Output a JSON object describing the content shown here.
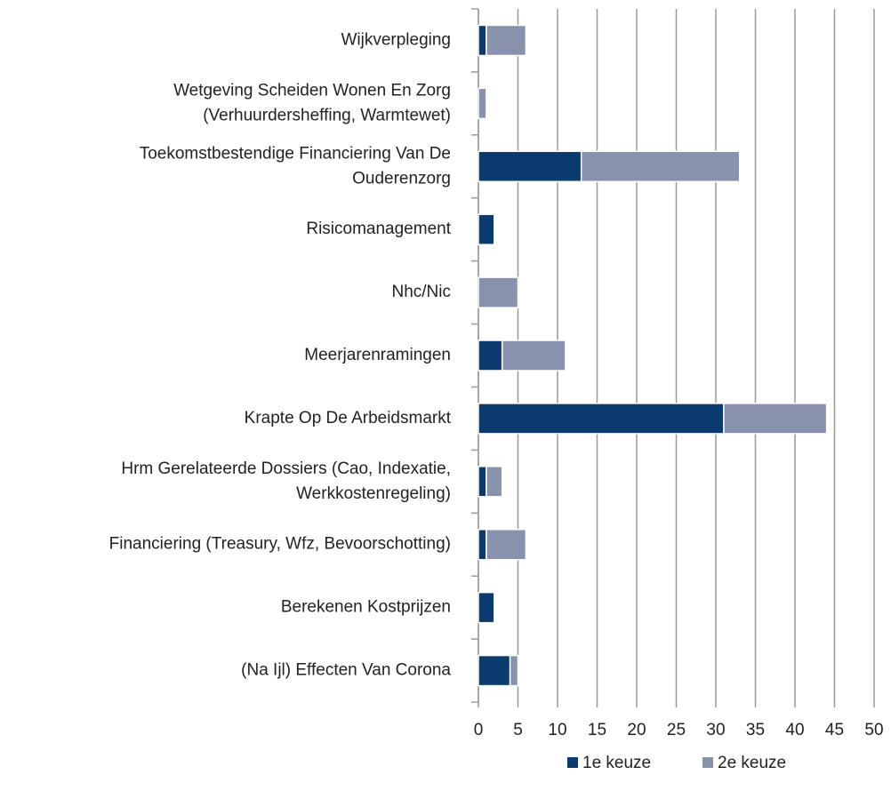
{
  "chart_data": {
    "type": "stacked-barh",
    "categories": [
      "Wijkverpleging",
      "Wetgeving Scheiden Wonen En Zorg\n(Verhuurdersheffing, Warmtewet)",
      "Toekomstbestendige Financiering Van De\nOuderenzorg",
      "Risicomanagement",
      "Nhc/Nic",
      "Meerjarenramingen",
      "Krapte Op De Arbeidsmarkt",
      "Hrm Gerelateerde Dossiers (Cao, Indexatie,\nWerkkostenregeling)",
      "Financiering (Treasury, Wfz, Bevoorschotting)",
      "Berekenen Kostprijzen",
      "(Na Ijl) Effecten Van Corona"
    ],
    "series": [
      {
        "name": "1e keuze",
        "color": "#0b3a6e",
        "values": [
          1,
          0,
          13,
          2,
          0,
          3,
          31,
          1,
          1,
          2,
          4
        ]
      },
      {
        "name": "2e keuze",
        "color": "#8892ad",
        "values": [
          5,
          1,
          20,
          0,
          5,
          8,
          13,
          2,
          5,
          0,
          1
        ]
      }
    ],
    "xlim": [
      0,
      50
    ],
    "xticks": [
      0,
      5,
      10,
      15,
      20,
      25,
      30,
      35,
      40,
      45,
      50
    ],
    "grid": true,
    "legend": "bottom"
  }
}
